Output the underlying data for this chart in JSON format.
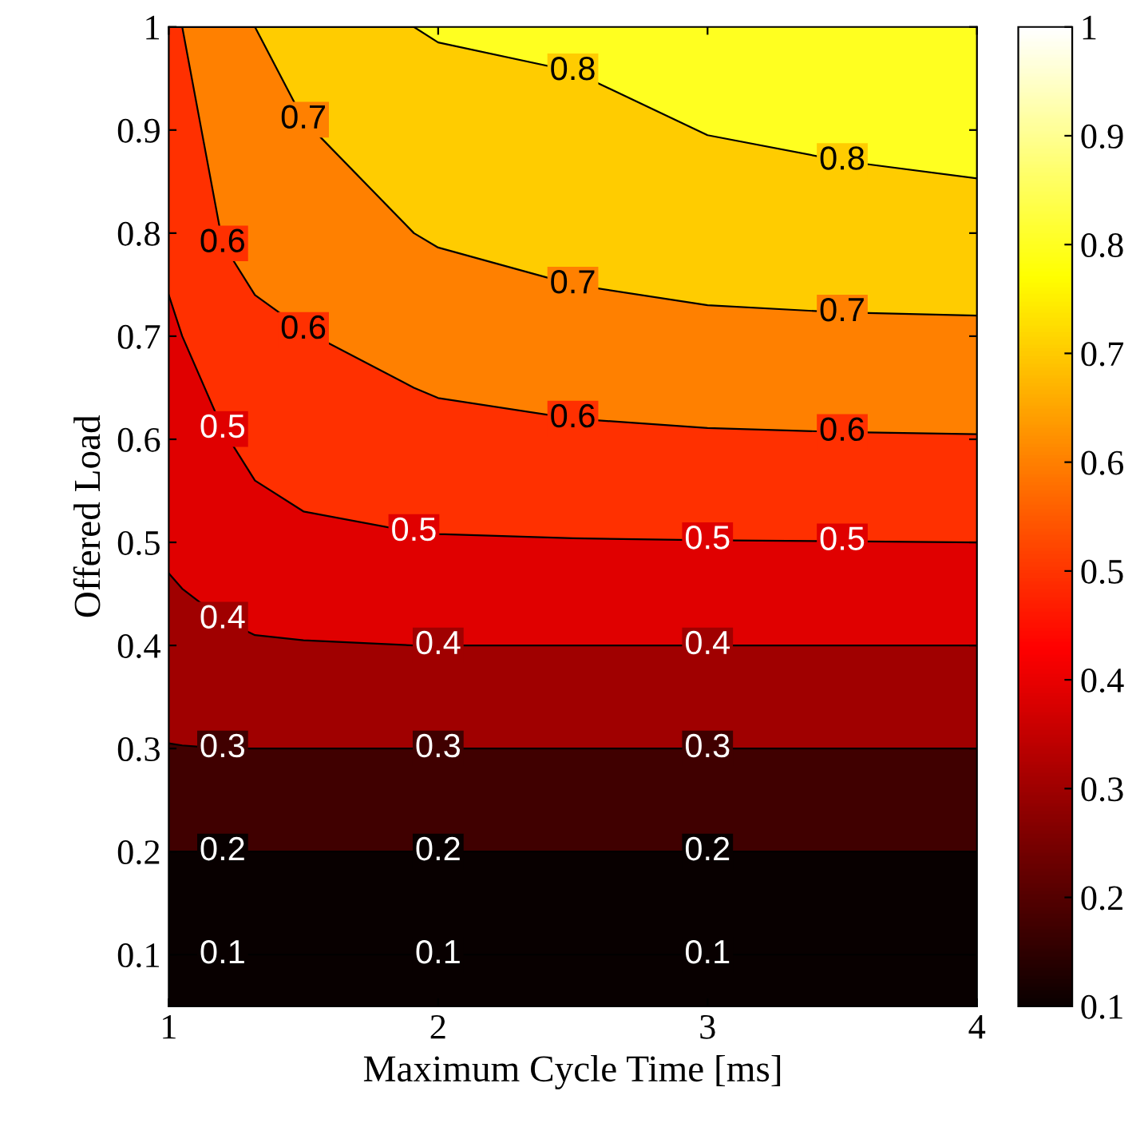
{
  "chart_data": {
    "type": "area",
    "xlabel": "Maximum Cycle Time [ms]",
    "ylabel": "Offered Load",
    "x": [
      1,
      1.05,
      1.2,
      1.32,
      1.5,
      1.91,
      2,
      2.5,
      3,
      3.5,
      4
    ],
    "series": [
      {
        "color": "#080000",
        "line_style": "solid",
        "values": [
          0.1,
          0.1,
          0.1,
          0.1,
          0.1,
          0.1,
          0.1,
          0.1,
          0.1,
          0.1,
          0.1
        ]
      },
      {
        "color": "#080000",
        "line_style": "solid",
        "values": [
          0.2,
          0.2,
          0.2,
          0.2,
          0.2,
          0.2,
          0.2,
          0.2,
          0.2,
          0.2,
          0.2
        ]
      },
      {
        "color": "#400000",
        "line_style": "solid",
        "values": [
          0.305,
          0.303,
          0.3,
          0.3,
          0.3,
          0.3,
          0.3,
          0.3,
          0.3,
          0.3,
          0.3
        ]
      },
      {
        "color": "#a00000",
        "line_style": "solid",
        "values": [
          0.47,
          0.455,
          0.425,
          0.41,
          0.405,
          0.4,
          0.4,
          0.4,
          0.4,
          0.4,
          0.4
        ]
      },
      {
        "color": "#e00000",
        "line_style": "solid",
        "values": [
          0.74,
          0.7,
          0.61,
          0.56,
          0.53,
          0.51,
          0.508,
          0.504,
          0.502,
          0.501,
          0.5
        ]
      },
      {
        "color": "#ff3000",
        "line_style": "solid",
        "values": [
          1,
          1,
          0.79,
          0.74,
          0.706,
          0.65,
          0.64,
          0.62,
          0.611,
          0.607,
          0.605
        ]
      },
      {
        "color": "#ff8000",
        "line_style": "solid",
        "values": [
          1,
          1,
          1,
          1,
          0.91,
          0.8,
          0.786,
          0.75,
          0.73,
          0.723,
          0.72
        ]
      },
      {
        "color": "#ffcc00",
        "line_style": "solid",
        "values": [
          1,
          1,
          1,
          1,
          1,
          1,
          0.985,
          0.957,
          0.895,
          0.87,
          0.853
        ]
      },
      {
        "color": "#ffff20",
        "values": [
          1,
          1,
          1,
          1,
          1,
          1,
          1,
          1,
          1,
          1,
          1
        ]
      }
    ],
    "xlim": [
      1,
      4
    ],
    "xticks": [
      1,
      2,
      3,
      4
    ],
    "ylim": [
      0.05,
      1
    ],
    "yticks": [
      0.1,
      0.2,
      0.3,
      0.4,
      0.5,
      0.6,
      0.7,
      0.8,
      0.9,
      1
    ],
    "clim": [
      0.1,
      1
    ],
    "cticks": [
      0.1,
      0.2,
      0.3,
      0.4,
      0.5,
      0.6,
      0.7,
      0.8,
      0.9,
      1
    ],
    "annotations": [
      {
        "text": "0.6",
        "x": 1.2,
        "y": 0.79
      },
      {
        "text": "0.7",
        "x": 1.5,
        "y": 0.91
      },
      {
        "text": "0.8",
        "x": 2.5,
        "y": 0.957
      },
      {
        "text": "0.8",
        "x": 3.5,
        "y": 0.87
      },
      {
        "text": "0.7",
        "x": 2.5,
        "y": 0.75
      },
      {
        "text": "0.7",
        "x": 3.5,
        "y": 0.723
      },
      {
        "text": "0.5",
        "x": 1.2,
        "y": 0.61
      },
      {
        "text": "0.6",
        "x": 1.5,
        "y": 0.706
      },
      {
        "text": "0.6",
        "x": 2.5,
        "y": 0.62
      },
      {
        "text": "0.6",
        "x": 3.5,
        "y": 0.607
      },
      {
        "text": "0.5",
        "x": 1.91,
        "y": 0.51
      },
      {
        "text": "0.5",
        "x": 3,
        "y": 0.502
      },
      {
        "text": "0.5",
        "x": 3.5,
        "y": 0.501
      },
      {
        "text": "0.4",
        "x": 1.2,
        "y": 0.425
      },
      {
        "text": "0.4",
        "x": 2,
        "y": 0.4
      },
      {
        "text": "0.4",
        "x": 3,
        "y": 0.4
      },
      {
        "text": "0.3",
        "x": 1.2,
        "y": 0.3
      },
      {
        "text": "0.3",
        "x": 2,
        "y": 0.3
      },
      {
        "text": "0.3",
        "x": 3,
        "y": 0.3
      },
      {
        "text": "0.2",
        "x": 1.2,
        "y": 0.2
      },
      {
        "text": "0.2",
        "x": 2,
        "y": 0.2
      },
      {
        "text": "0.2",
        "x": 3,
        "y": 0.2
      },
      {
        "text": "0.1",
        "x": 1.2,
        "y": 0.1
      },
      {
        "text": "0.1",
        "x": 2,
        "y": 0.1
      },
      {
        "text": "0.1",
        "x": 3,
        "y": 0.1
      }
    ]
  }
}
